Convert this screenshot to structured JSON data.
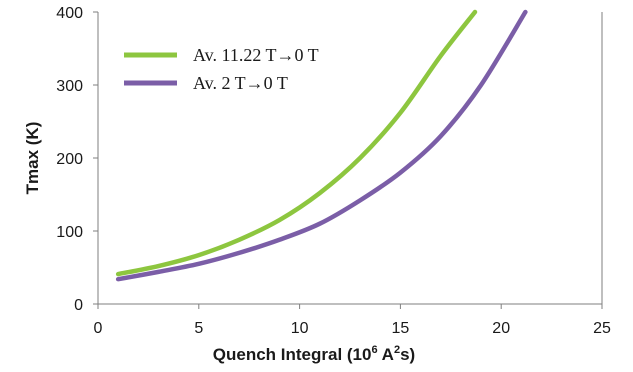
{
  "chart_data": {
    "type": "line",
    "xlabel_main": "Quench Integral (10",
    "xlabel_exp": "6",
    "xlabel_mid": " A",
    "xlabel_exp2": "2",
    "xlabel_end": "s)",
    "ylabel": "Tmax (K)",
    "xlim": [
      0,
      25
    ],
    "ylim": [
      0,
      400
    ],
    "x_ticks": [
      "0",
      "5",
      "10",
      "15",
      "20",
      "25"
    ],
    "y_ticks": [
      "0",
      "100",
      "200",
      "300",
      "400"
    ],
    "grid": false,
    "legend_position": "top-left",
    "series": [
      {
        "name": "Av. 11.22 T→0 T",
        "color": "#8dc63f",
        "x": [
          1,
          3,
          5,
          7,
          9,
          11,
          13,
          15,
          17,
          18.7
        ],
        "y": [
          41,
          52,
          67,
          88,
          115,
          152,
          200,
          262,
          340,
          400
        ]
      },
      {
        "name": "Av. 2 T→0 T",
        "color": "#7b5ea7",
        "x": [
          1,
          3,
          5,
          7,
          9,
          11,
          13,
          15,
          17,
          19,
          21.2
        ],
        "y": [
          34,
          44,
          55,
          70,
          88,
          110,
          142,
          180,
          230,
          300,
          400
        ]
      }
    ]
  }
}
